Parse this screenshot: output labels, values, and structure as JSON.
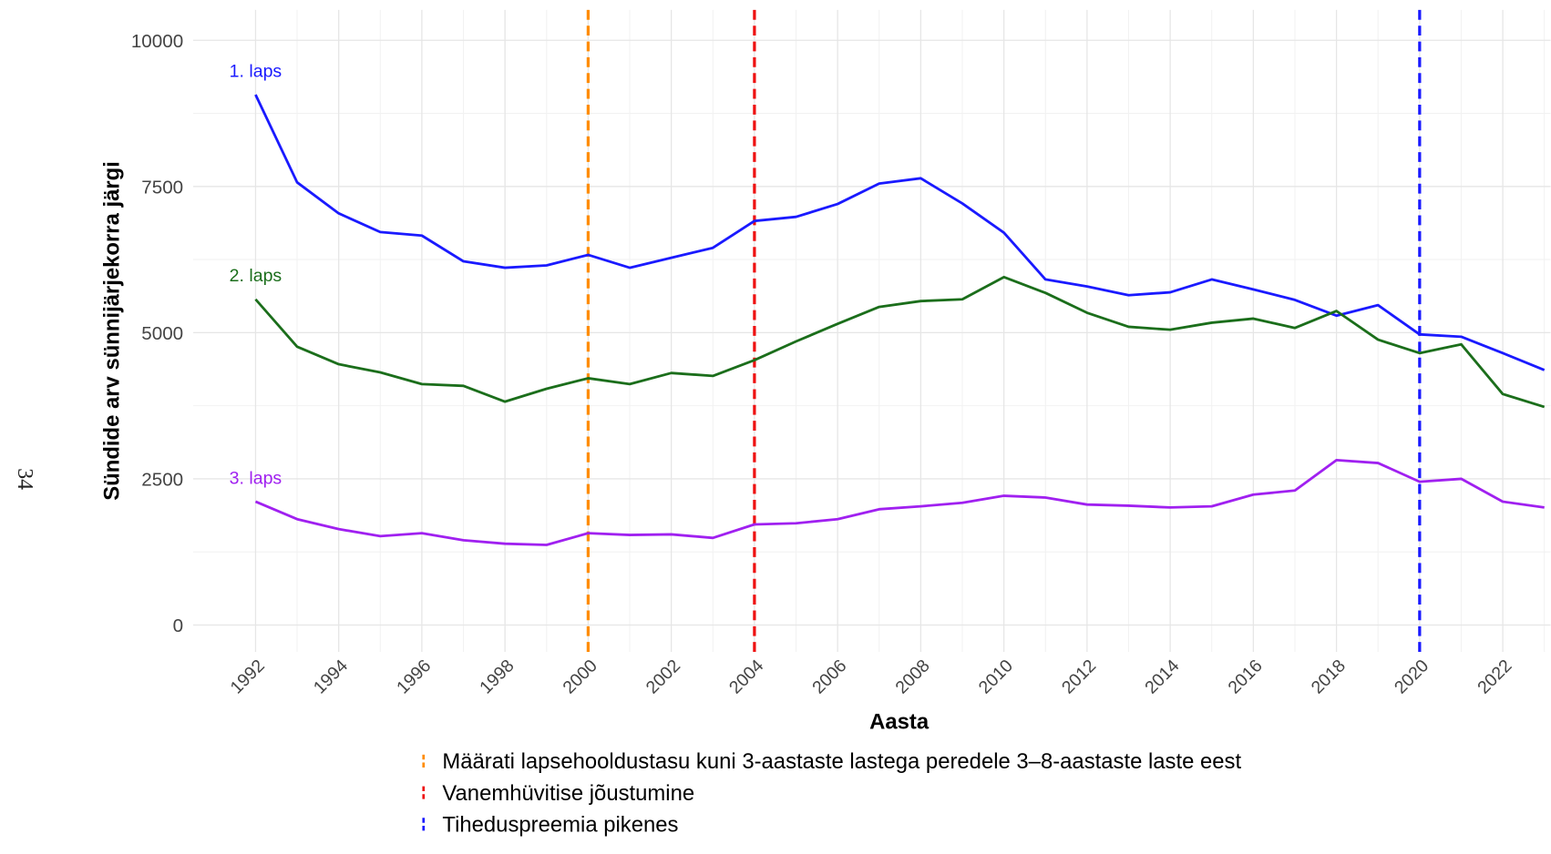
{
  "page_number": "34",
  "chart_data": {
    "type": "line",
    "x_label": "Aasta",
    "y_label": "Sündide arv sünnijärjekorra järgi",
    "x": [
      1992,
      1993,
      1994,
      1995,
      1996,
      1997,
      1998,
      1999,
      2000,
      2001,
      2002,
      2003,
      2004,
      2005,
      2006,
      2007,
      2008,
      2009,
      2010,
      2011,
      2012,
      2013,
      2014,
      2015,
      2016,
      2017,
      2018,
      2019,
      2020,
      2021,
      2022,
      2023
    ],
    "series": [
      {
        "name": "1. laps",
        "color": "#1a1aff",
        "values": [
          9070,
          7570,
          7040,
          6720,
          6660,
          6220,
          6110,
          6150,
          6330,
          6110,
          6280,
          6450,
          6910,
          6980,
          7200,
          7550,
          7640,
          7210,
          6710,
          5910,
          5790,
          5640,
          5690,
          5910,
          5740,
          5560,
          5290,
          5470,
          4970,
          4930,
          4650,
          4360
        ]
      },
      {
        "name": "2. laps",
        "color": "#1b6e1b",
        "values": [
          5570,
          4760,
          4460,
          4320,
          4120,
          4090,
          3820,
          4040,
          4220,
          4120,
          4310,
          4260,
          4530,
          4850,
          5150,
          5440,
          5540,
          5570,
          5950,
          5680,
          5340,
          5100,
          5050,
          5170,
          5240,
          5080,
          5370,
          4880,
          4650,
          4800,
          3950,
          3730
        ]
      },
      {
        "name": "3. laps",
        "color": "#a020f0",
        "values": [
          2110,
          1810,
          1640,
          1520,
          1570,
          1450,
          1390,
          1370,
          1570,
          1540,
          1550,
          1490,
          1720,
          1740,
          1810,
          1980,
          2030,
          2090,
          2210,
          2180,
          2060,
          2040,
          2010,
          2030,
          2230,
          2300,
          2820,
          2770,
          2450,
          2500,
          2110,
          2010
        ]
      }
    ],
    "vlines": [
      {
        "x": 2000,
        "color": "#ff8c00",
        "label": "Määrati lapsehooldustasu kuni 3-aastaste lastega peredele 3–8-aastaste laste eest"
      },
      {
        "x": 2004,
        "color": "#ee1111",
        "label": "Vanemhüvitise jõustumine"
      },
      {
        "x": 2020,
        "color": "#1a1aff",
        "label": "Tiheduspreemia pikenes"
      }
    ],
    "xlim": [
      1990.5,
      2023.15
    ],
    "ylim": [
      -460,
      10520
    ],
    "xticks": [
      1992,
      1994,
      1996,
      1998,
      2000,
      2002,
      2004,
      2006,
      2008,
      2010,
      2012,
      2014,
      2016,
      2018,
      2020,
      2022
    ],
    "yticks": [
      0,
      2500,
      5000,
      7500,
      10000
    ],
    "grid": true
  }
}
